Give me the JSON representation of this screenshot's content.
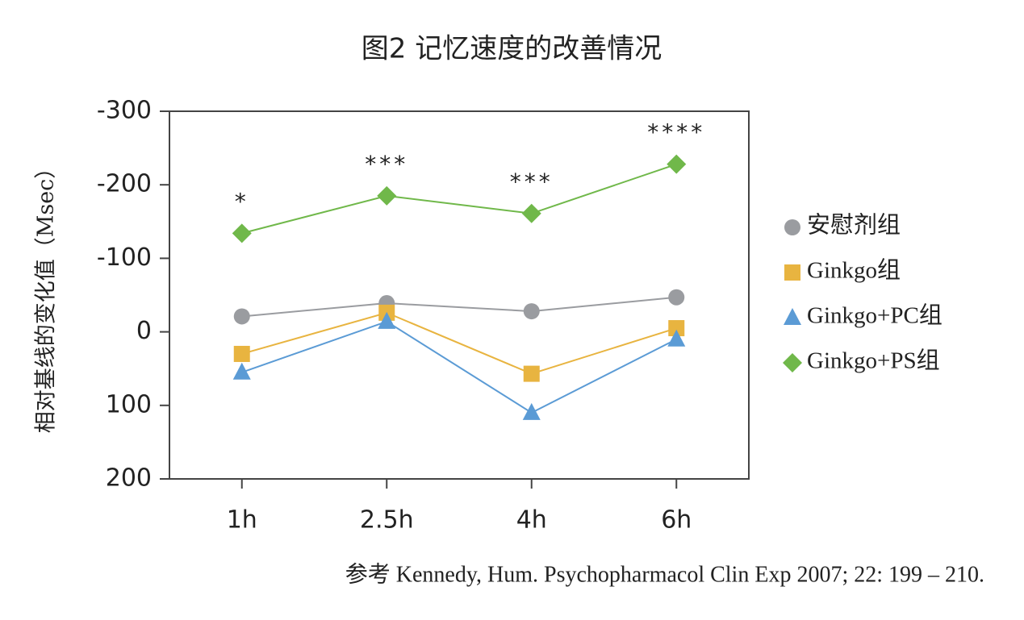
{
  "chart_data": {
    "type": "line",
    "title": "图2 记忆速度的改善情况",
    "y_label": "相对基线的变化值（Msec）",
    "categories": [
      "1h",
      "2.5h",
      "4h",
      "6h"
    ],
    "series": [
      {
        "name": "安慰剂组",
        "color": "#9a9ca0",
        "marker": "circle",
        "values": [
          -21,
          -39,
          -28,
          -47
        ]
      },
      {
        "name": "Ginkgo组",
        "color": "#e8b440",
        "marker": "square",
        "values": [
          30,
          -26,
          57,
          -5
        ]
      },
      {
        "name": "Ginkgo+PC组",
        "color": "#5b9bd5",
        "marker": "triangle",
        "values": [
          55,
          -14,
          110,
          10
        ]
      },
      {
        "name": "Ginkgo+PS组",
        "color": "#70b84a",
        "marker": "diamond",
        "values": [
          -134,
          -185,
          -161,
          -228
        ]
      }
    ],
    "annotations": [
      "*",
      "***",
      "***",
      "****"
    ],
    "ylim": [
      -300,
      200
    ],
    "y_inverted": true,
    "yticks": [
      -300,
      -200,
      -100,
      0,
      100,
      200
    ],
    "source": "参考 Kennedy, Hum. Psychopharmacol Clin Exp 2007; 22: 199 – 210."
  }
}
